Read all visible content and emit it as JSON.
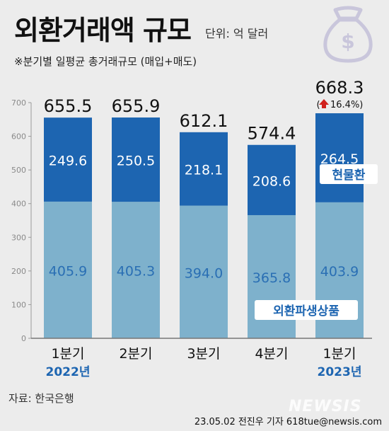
{
  "header": {
    "title": "외환거래액 규모",
    "unit": "단위: 억 달러",
    "subtitle": "※분기별 일평균 총거래규모 (매입+매도)"
  },
  "footer": {
    "source": "자료: 한국은행",
    "credit": "23.05.02 전진우 기자 618tue@newsis.com",
    "watermark": "NEWSIS"
  },
  "icons": {
    "decoration": "money-bag-icon",
    "increase": "up-arrow-icon"
  },
  "colors": {
    "top_segment": "#1d65b1",
    "bottom_segment": "#7eb1cc",
    "bottom_value_text": "#2a6fb4",
    "year_label": "#1d65b1",
    "increase_arrow": "#d0211d",
    "legend_bg": "#ffffff"
  },
  "chart_data": {
    "type": "bar",
    "stacked": true,
    "categories": [
      "1분기",
      "2분기",
      "3분기",
      "4분기",
      "1분기"
    ],
    "year_labels": [
      "2022년",
      "",
      "",
      "",
      "2023년"
    ],
    "totals": [
      655.5,
      655.9,
      612.1,
      574.4,
      668.3
    ],
    "total_labels": [
      "655.5",
      "655.9",
      "612.1",
      "574.4",
      "668.3"
    ],
    "series": [
      {
        "name": "외환파생상품",
        "values": [
          405.9,
          405.3,
          394.0,
          365.8,
          403.9
        ],
        "labels": [
          "405.9",
          "405.3",
          "394.0",
          "365.8",
          "403.9"
        ]
      },
      {
        "name": "현물환",
        "values": [
          249.6,
          250.5,
          218.1,
          208.6,
          264.5
        ],
        "labels": [
          "249.6",
          "250.5",
          "218.1",
          "208.6",
          "264.5"
        ]
      }
    ],
    "annotation": {
      "index": 4,
      "prefix": "(",
      "text": "16.4%)"
    },
    "ylim": [
      0,
      700
    ],
    "yticks": [
      0,
      100,
      200,
      300,
      400,
      500,
      600,
      700
    ],
    "ytick_labels": [
      "0",
      "100",
      "200",
      "300",
      "400",
      "500",
      "600",
      "700"
    ],
    "grid": false,
    "legend": "inside-bars"
  }
}
